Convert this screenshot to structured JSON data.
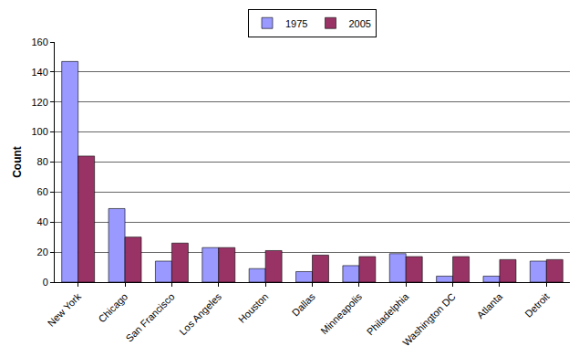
{
  "chart_data": {
    "type": "bar",
    "y_label": "Count",
    "categories": [
      "New York",
      "Chicago",
      "San Francisco",
      "Los Angeles",
      "Houston",
      "Dallas",
      "Minneapolis",
      "Philadelphia",
      "Washington DC",
      "Atlanta",
      "Detroit"
    ],
    "series": [
      {
        "name": "1975",
        "color": "#9999ff",
        "values": [
          147,
          49,
          14,
          23,
          9,
          7,
          11,
          19,
          4,
          4,
          14
        ]
      },
      {
        "name": "2005",
        "color": "#993366",
        "values": [
          84,
          30,
          26,
          23,
          21,
          18,
          17,
          17,
          17,
          15,
          15
        ]
      }
    ],
    "ylim": [
      0,
      160
    ],
    "yticks": [
      0,
      20,
      40,
      60,
      80,
      100,
      120,
      140,
      160
    ],
    "grid": true,
    "legend": "top"
  }
}
